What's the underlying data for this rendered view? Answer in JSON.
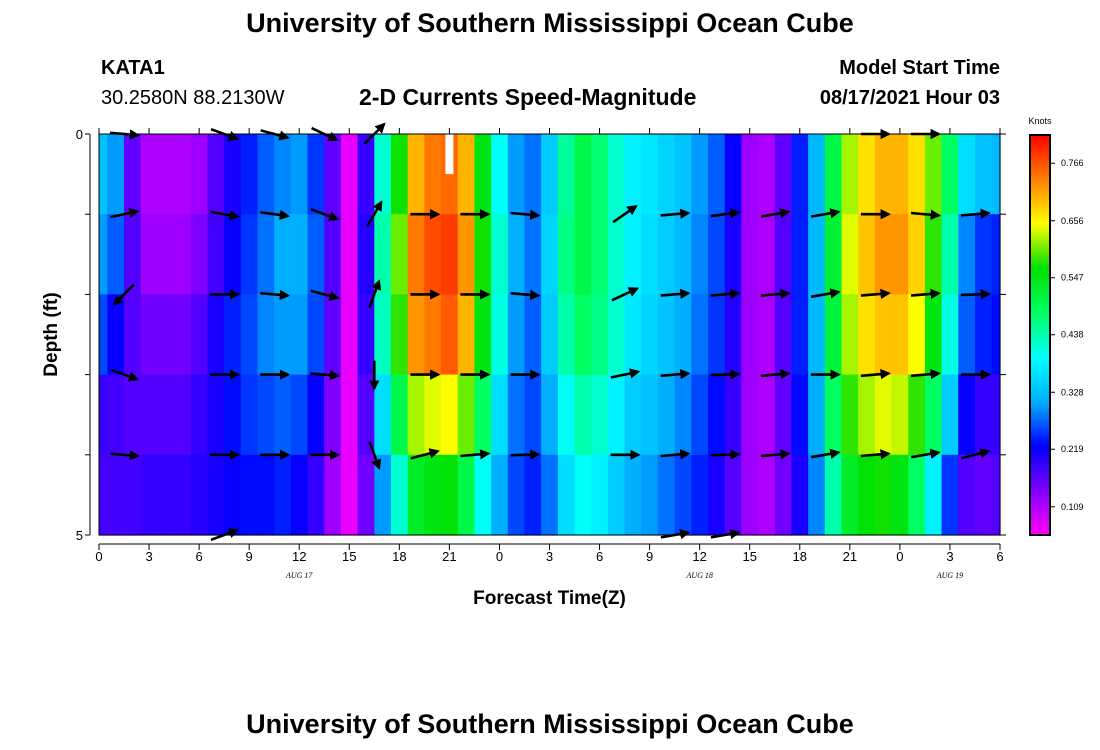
{
  "header": {
    "title": "University of Southern Mississippi Ocean Cube",
    "station_id": "KATA1",
    "station_coords": "30.2580N  88.2130W",
    "plot_title": "2-D Currents Speed-Magnitude",
    "model_start_label": "Model Start Time",
    "model_start_value": "08/17/2021 Hour 03"
  },
  "footer": {
    "title": "University of Southern Mississippi Ocean Cube"
  },
  "chart_data": {
    "type": "heatmap",
    "title": "2-D Currents Speed-Magnitude",
    "xlabel": "Forecast Time(Z)",
    "ylabel": "Depth (ft)",
    "x_tick_labels": [
      "0",
      "3",
      "6",
      "9",
      "12",
      "15",
      "18",
      "21",
      "0",
      "3",
      "6",
      "9",
      "12",
      "15",
      "18",
      "21",
      "0",
      "3",
      "6"
    ],
    "x_range_hours": [
      0,
      54
    ],
    "y_range": [
      0,
      5
    ],
    "y_tick_labels": [
      "0",
      "5"
    ],
    "y_tick_count": 6,
    "date_labels": [
      {
        "text": "AUG 17",
        "hour": 12
      },
      {
        "text": "AUG 18",
        "hour": 36
      },
      {
        "text": "AUG 19",
        "hour": 51
      }
    ],
    "colorbar": {
      "units": "Knots",
      "min": 0.055,
      "max": 0.82,
      "tick_values": [
        0.109,
        0.219,
        0.328,
        0.438,
        0.547,
        0.656,
        0.766
      ],
      "tick_labels": [
        "0.109",
        "0.219",
        "0.328",
        "0.438",
        "0.547",
        "0.656",
        "0.766"
      ],
      "colors": [
        "#ff00ff",
        "#8000ff",
        "#0000ff",
        "#00b0ff",
        "#00ffff",
        "#00ff60",
        "#00e000",
        "#ffff00",
        "#ff8000",
        "#ff0000"
      ]
    },
    "speed_columns_hours": [
      0,
      1,
      2,
      3,
      4,
      5,
      6,
      7,
      8,
      9,
      10,
      11,
      12,
      13,
      14,
      15,
      16,
      17,
      18,
      19,
      20,
      21,
      22,
      23,
      24,
      25,
      26,
      27,
      28,
      29,
      30,
      31,
      32,
      33,
      34,
      35,
      36,
      37,
      38,
      39,
      40,
      41,
      42,
      43,
      44,
      45,
      46,
      47,
      48,
      49,
      50,
      51,
      52,
      53,
      54
    ],
    "speed_knots": [
      [
        0.33,
        0.3,
        0.16,
        0.11,
        0.11,
        0.11,
        0.12,
        0.17,
        0.21,
        0.24,
        0.27,
        0.29,
        0.3,
        0.25,
        0.16,
        0.07,
        0.19,
        0.42,
        0.57,
        0.7,
        0.74,
        0.75,
        0.7,
        0.55,
        0.4,
        0.3,
        0.28,
        0.34,
        0.45,
        0.5,
        0.47,
        0.42,
        0.38,
        0.37,
        0.35,
        0.33,
        0.3,
        0.27,
        0.22,
        0.12,
        0.11,
        0.16,
        0.24,
        0.32,
        0.5,
        0.62,
        0.67,
        0.7,
        0.7,
        0.67,
        0.6,
        0.48,
        0.36,
        0.33,
        0.32
      ],
      [
        0.3,
        0.27,
        0.17,
        0.12,
        0.12,
        0.12,
        0.14,
        0.18,
        0.22,
        0.25,
        0.28,
        0.31,
        0.31,
        0.27,
        0.17,
        0.07,
        0.2,
        0.44,
        0.6,
        0.74,
        0.77,
        0.78,
        0.72,
        0.57,
        0.42,
        0.31,
        0.28,
        0.35,
        0.46,
        0.5,
        0.47,
        0.42,
        0.38,
        0.36,
        0.34,
        0.32,
        0.29,
        0.26,
        0.21,
        0.12,
        0.11,
        0.17,
        0.24,
        0.32,
        0.52,
        0.64,
        0.69,
        0.72,
        0.72,
        0.68,
        0.58,
        0.44,
        0.29,
        0.25,
        0.24
      ],
      [
        0.26,
        0.22,
        0.17,
        0.15,
        0.15,
        0.15,
        0.17,
        0.21,
        0.24,
        0.26,
        0.29,
        0.3,
        0.3,
        0.26,
        0.16,
        0.07,
        0.19,
        0.43,
        0.58,
        0.72,
        0.74,
        0.76,
        0.7,
        0.55,
        0.41,
        0.3,
        0.27,
        0.34,
        0.44,
        0.48,
        0.46,
        0.42,
        0.37,
        0.35,
        0.33,
        0.31,
        0.28,
        0.25,
        0.2,
        0.12,
        0.11,
        0.17,
        0.24,
        0.32,
        0.51,
        0.62,
        0.67,
        0.69,
        0.69,
        0.65,
        0.55,
        0.41,
        0.27,
        0.24,
        0.23
      ],
      [
        0.19,
        0.18,
        0.17,
        0.17,
        0.17,
        0.17,
        0.19,
        0.21,
        0.23,
        0.25,
        0.26,
        0.27,
        0.26,
        0.22,
        0.14,
        0.07,
        0.17,
        0.36,
        0.5,
        0.62,
        0.64,
        0.65,
        0.6,
        0.48,
        0.36,
        0.28,
        0.26,
        0.31,
        0.4,
        0.44,
        0.42,
        0.38,
        0.34,
        0.33,
        0.31,
        0.29,
        0.26,
        0.23,
        0.19,
        0.12,
        0.11,
        0.16,
        0.23,
        0.31,
        0.48,
        0.58,
        0.62,
        0.64,
        0.63,
        0.58,
        0.48,
        0.34,
        0.22,
        0.19,
        0.19
      ],
      [
        0.18,
        0.18,
        0.18,
        0.19,
        0.19,
        0.19,
        0.2,
        0.21,
        0.22,
        0.23,
        0.23,
        0.24,
        0.22,
        0.19,
        0.12,
        0.07,
        0.15,
        0.3,
        0.42,
        0.53,
        0.55,
        0.56,
        0.5,
        0.4,
        0.31,
        0.26,
        0.24,
        0.28,
        0.36,
        0.4,
        0.38,
        0.34,
        0.31,
        0.3,
        0.28,
        0.26,
        0.24,
        0.21,
        0.17,
        0.12,
        0.11,
        0.15,
        0.21,
        0.29,
        0.44,
        0.53,
        0.56,
        0.57,
        0.55,
        0.48,
        0.38,
        0.25,
        0.17,
        0.16,
        0.17
      ]
    ],
    "vector_rows_depth_ft": [
      0,
      1,
      2,
      3,
      4,
      5
    ],
    "vector_cols_hours": [
      1.5,
      4.5,
      7.5,
      10.5,
      13.5,
      16.5,
      19.5,
      22.5,
      25.5,
      28.5,
      31.5,
      34.5,
      37.5,
      40.5,
      43.5,
      46.5,
      49.5,
      52.5
    ],
    "vector_angles_deg": [
      [
        5,
        null,
        20,
        15,
        25,
        -45,
        null,
        null,
        null,
        null,
        null,
        null,
        null,
        null,
        null,
        0,
        0,
        null
      ],
      [
        -12,
        null,
        10,
        8,
        20,
        -60,
        0,
        0,
        5,
        null,
        -35,
        -5,
        -8,
        -10,
        -10,
        0,
        5,
        -5
      ],
      [
        135,
        null,
        0,
        5,
        15,
        -70,
        0,
        0,
        5,
        null,
        -25,
        -5,
        -5,
        -5,
        -10,
        -5,
        -5,
        -2
      ],
      [
        20,
        null,
        0,
        0,
        5,
        90,
        0,
        0,
        0,
        null,
        -12,
        -5,
        -2,
        -5,
        0,
        -5,
        -5,
        0
      ],
      [
        5,
        null,
        0,
        0,
        0,
        70,
        -15,
        -5,
        -2,
        null,
        0,
        -5,
        -2,
        -5,
        -10,
        -5,
        -10,
        -15
      ],
      [
        null,
        null,
        -20,
        null,
        null,
        null,
        null,
        null,
        null,
        null,
        null,
        -10,
        -10,
        null,
        null,
        null,
        null,
        null
      ]
    ],
    "vector_lengths": [
      [
        1,
        null,
        1,
        1,
        1,
        1,
        null,
        null,
        null,
        null,
        null,
        null,
        null,
        null,
        null,
        1,
        1,
        null
      ],
      [
        1,
        null,
        1,
        1,
        1,
        1,
        1,
        1,
        1,
        null,
        1,
        1,
        1,
        1,
        1,
        1,
        1,
        1
      ],
      [
        1,
        null,
        1,
        1,
        1,
        1,
        1,
        1,
        1,
        null,
        1,
        1,
        1,
        1,
        1,
        1,
        1,
        1
      ],
      [
        1,
        null,
        1,
        1,
        1,
        1,
        1,
        1,
        1,
        null,
        1,
        1,
        1,
        1,
        1,
        1,
        1,
        1
      ],
      [
        1,
        null,
        1,
        1,
        1,
        1,
        1,
        1,
        1,
        null,
        1,
        1,
        1,
        1,
        1,
        1,
        1,
        1
      ],
      [
        null,
        null,
        1,
        null,
        null,
        null,
        null,
        null,
        null,
        null,
        null,
        1,
        1,
        null,
        null,
        null,
        null,
        null
      ]
    ],
    "missing_data": [
      {
        "hour": 21,
        "depth_ft": [
          0,
          0.5
        ]
      }
    ]
  }
}
